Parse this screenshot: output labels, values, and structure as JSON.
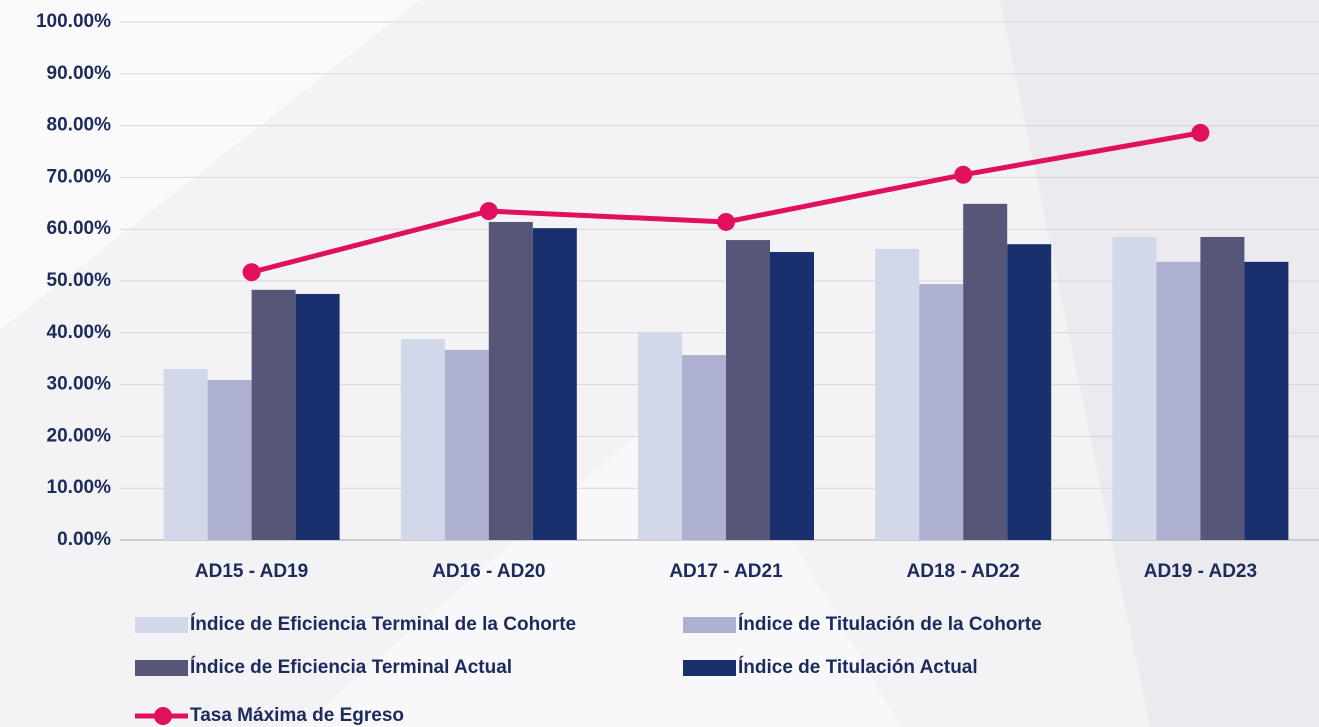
{
  "chart_data": {
    "type": "bar",
    "categories": [
      "AD15 - AD19",
      "AD16 - AD20",
      "AD17 - AD21",
      "AD18 - AD22",
      "AD19 - AD23"
    ],
    "series": [
      {
        "name": "Índice de Eficiencia Terminal de la Cohorte",
        "color": "#d0d8ea",
        "values": [
          33.0,
          38.8,
          40.2,
          56.2,
          58.5
        ]
      },
      {
        "name": "Índice de Titulación de la Cohorte",
        "color": "#aeb0d0",
        "values": [
          30.9,
          36.7,
          35.7,
          49.4,
          53.7
        ]
      },
      {
        "name": "Índice de Eficiencia Terminal Actual",
        "color": "#565678",
        "values": [
          48.3,
          61.4,
          57.9,
          64.9,
          58.5
        ]
      },
      {
        "name": "Índice de Titulación Actual",
        "color": "#1a2f6e",
        "values": [
          47.5,
          60.2,
          55.6,
          57.1,
          53.7
        ]
      },
      {
        "name": "Tasa Máxima de Egreso",
        "color": "#e0105f",
        "type": "line",
        "values": [
          51.7,
          63.5,
          61.4,
          70.5,
          78.6
        ]
      }
    ],
    "ylim": [
      0,
      100
    ],
    "yticks": [
      {
        "value": 0,
        "label": "0.00%"
      },
      {
        "value": 10,
        "label": "10.00%"
      },
      {
        "value": 20,
        "label": "20.00%"
      },
      {
        "value": 30,
        "label": "30.00%"
      },
      {
        "value": 40,
        "label": "40.00%"
      },
      {
        "value": 50,
        "label": "50.00%"
      },
      {
        "value": 60,
        "label": "60.00%"
      },
      {
        "value": 70,
        "label": "70.00%"
      },
      {
        "value": 80,
        "label": "80.00%"
      },
      {
        "value": 90,
        "label": "90.00%"
      },
      {
        "value": 100,
        "label": "100.00%"
      }
    ],
    "grid": true
  }
}
